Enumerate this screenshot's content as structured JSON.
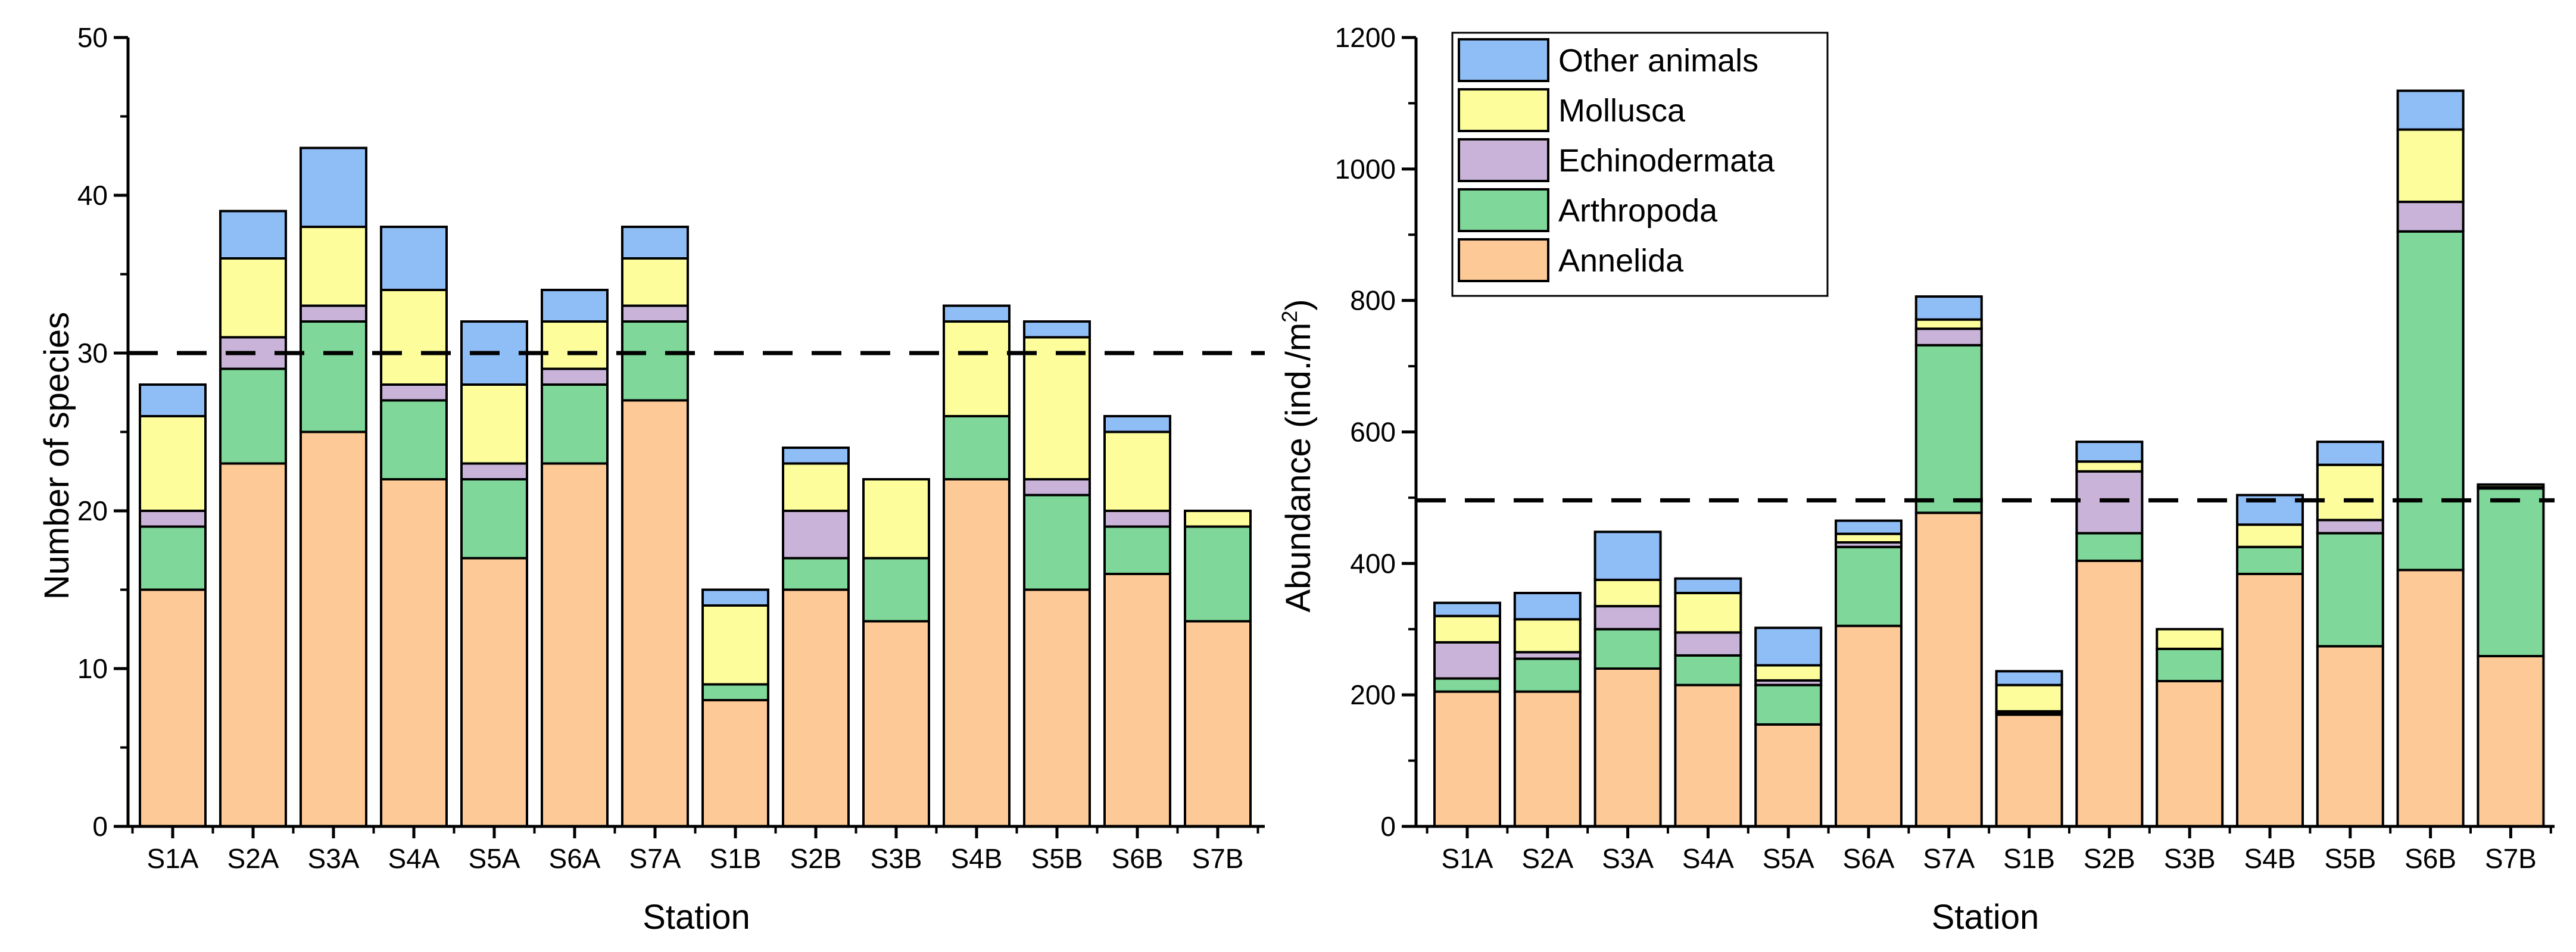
{
  "colors": {
    "Annelida": "#fdc996",
    "Arthropoda": "#7fd89a",
    "Echinodermata": "#c9b3d8",
    "Mollusca": "#fdfd9b",
    "Other animals": "#8fbdf6"
  },
  "chart_data": [
    {
      "type": "bar",
      "stacked": true,
      "title": "",
      "xlabel": "Station",
      "ylabel": "Number of species",
      "ylim": [
        0,
        50
      ],
      "yticks": [
        0,
        10,
        20,
        30,
        40,
        50
      ],
      "reference_line": 30,
      "categories": [
        "S1A",
        "S2A",
        "S3A",
        "S4A",
        "S5A",
        "S6A",
        "S7A",
        "S1B",
        "S2B",
        "S3B",
        "S4B",
        "S5B",
        "S6B",
        "S7B"
      ],
      "series": [
        {
          "name": "Annelida",
          "values": [
            15,
            23,
            25,
            22,
            17,
            23,
            27,
            8,
            15,
            13,
            22,
            15,
            16,
            13
          ]
        },
        {
          "name": "Arthropoda",
          "values": [
            4,
            6,
            7,
            5,
            5,
            5,
            5,
            1,
            2,
            4,
            4,
            6,
            3,
            6
          ]
        },
        {
          "name": "Echinodermata",
          "values": [
            1,
            2,
            1,
            1,
            1,
            1,
            1,
            0,
            3,
            0,
            0,
            1,
            1,
            0
          ]
        },
        {
          "name": "Mollusca",
          "values": [
            6,
            5,
            5,
            6,
            5,
            3,
            3,
            5,
            3,
            5,
            6,
            9,
            5,
            1
          ]
        },
        {
          "name": "Other animals",
          "values": [
            2,
            3,
            5,
            4,
            4,
            2,
            2,
            1,
            1,
            0,
            1,
            1,
            1,
            0
          ]
        }
      ]
    },
    {
      "type": "bar",
      "stacked": true,
      "title": "",
      "xlabel": "Station",
      "ylabel": "Abundance (ind./m",
      "ylabel_sup": "2",
      "ylabel_end": ")",
      "ylim": [
        0,
        1200
      ],
      "yticks": [
        0,
        200,
        400,
        600,
        800,
        1000,
        1200
      ],
      "reference_line": 496,
      "legend": {
        "placement": "top-left",
        "entries": [
          "Other animals",
          "Mollusca",
          "Echinodermata",
          "Arthropoda",
          "Annelida"
        ]
      },
      "categories": [
        "S1A",
        "S2A",
        "S3A",
        "S4A",
        "S5A",
        "S6A",
        "S7A",
        "S1B",
        "S2B",
        "S3B",
        "S4B",
        "S5B",
        "S6B",
        "S7B"
      ],
      "series": [
        {
          "name": "Annelida",
          "values": [
            205,
            205,
            240,
            215,
            155,
            305,
            477,
            170,
            404,
            221,
            384,
            274,
            390,
            259
          ]
        },
        {
          "name": "Arthropoda",
          "values": [
            20,
            50,
            60,
            45,
            60,
            120,
            255,
            3,
            42,
            49,
            41,
            172,
            515,
            255
          ]
        },
        {
          "name": "Echinodermata",
          "values": [
            55,
            10,
            35,
            35,
            7,
            7,
            25,
            2,
            94,
            0,
            0,
            20,
            45,
            2
          ]
        },
        {
          "name": "Mollusca",
          "values": [
            40,
            50,
            40,
            60,
            23,
            13,
            14,
            40,
            15,
            30,
            34,
            84,
            110,
            4
          ]
        },
        {
          "name": "Other animals",
          "values": [
            20,
            40,
            73,
            22,
            57,
            20,
            35,
            21,
            30,
            0,
            45,
            35,
            59,
            0
          ]
        }
      ]
    }
  ]
}
